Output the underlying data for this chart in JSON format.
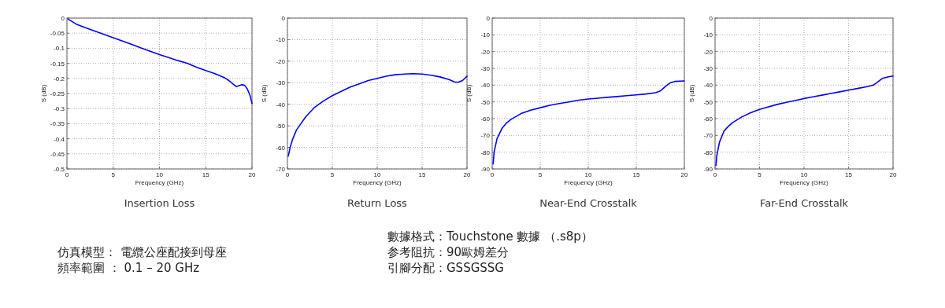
{
  "chart_data": [
    {
      "type": "line",
      "title": "Insertion Loss",
      "xlabel": "Frequency (GHz)",
      "ylabel": "S (dB)",
      "xlim": [
        0,
        20
      ],
      "xticks": [
        0,
        5,
        10,
        15,
        20
      ],
      "ylim": [
        -0.5,
        0
      ],
      "yticks": [
        0,
        -0.05,
        -0.1,
        -0.15,
        -0.2,
        -0.25,
        -0.3,
        -0.35,
        -0.4,
        -0.45,
        -0.5
      ],
      "grid": true,
      "series": [
        {
          "color": "#0000ff",
          "x": [
            0.1,
            1,
            2,
            3,
            4,
            5,
            6,
            7,
            8,
            9,
            10,
            11,
            12,
            13,
            14,
            15,
            16,
            17,
            17.5,
            18,
            18.3,
            18.6,
            18.9,
            19.2,
            19.5,
            19.8,
            20
          ],
          "values": [
            -0.003,
            -0.02,
            -0.032,
            -0.043,
            -0.054,
            -0.065,
            -0.076,
            -0.087,
            -0.099,
            -0.11,
            -0.121,
            -0.131,
            -0.141,
            -0.15,
            -0.163,
            -0.174,
            -0.184,
            -0.197,
            -0.207,
            -0.22,
            -0.227,
            -0.224,
            -0.221,
            -0.223,
            -0.235,
            -0.258,
            -0.283
          ]
        }
      ]
    },
    {
      "type": "line",
      "title": "Return Loss",
      "xlabel": "Frequency (GHz)",
      "ylabel": "S (dB)",
      "xlim": [
        0,
        20
      ],
      "xticks": [
        0,
        5,
        10,
        15,
        20
      ],
      "ylim": [
        -70,
        0
      ],
      "yticks": [
        0,
        -10,
        -20,
        -30,
        -40,
        -50,
        -60,
        -70
      ],
      "grid": true,
      "series": [
        {
          "color": "#0000ff",
          "x": [
            0.1,
            0.3,
            0.6,
            1,
            1.5,
            2,
            3,
            4,
            5,
            6,
            7,
            8,
            9,
            10,
            11,
            12,
            13,
            14,
            15,
            16,
            17,
            18,
            18.6,
            19,
            19.5,
            20
          ],
          "values": [
            -64,
            -60,
            -56,
            -52,
            -49,
            -46,
            -41.5,
            -38.5,
            -36,
            -34,
            -32,
            -30.5,
            -29,
            -28,
            -27,
            -26.3,
            -26,
            -25.8,
            -26,
            -26.5,
            -27.3,
            -28.5,
            -29.6,
            -29.8,
            -29,
            -27
          ]
        }
      ]
    },
    {
      "type": "line",
      "title": "Near-End Crosstalk",
      "xlabel": "Frequency (GHz)",
      "ylabel": "S (dB)",
      "xlim": [
        0,
        20
      ],
      "xticks": [
        0,
        5,
        10,
        15,
        20
      ],
      "ylim": [
        -90,
        0
      ],
      "yticks": [
        0,
        -10,
        -20,
        -30,
        -40,
        -50,
        -60,
        -70,
        -80,
        -90
      ],
      "grid": true,
      "series": [
        {
          "color": "#0000ff",
          "x": [
            0.1,
            0.2,
            0.5,
            1,
            1.5,
            2,
            3,
            4,
            5,
            6,
            7,
            8,
            9,
            10,
            11,
            12,
            13,
            14,
            15,
            16,
            17,
            17.5,
            18,
            18.5,
            19,
            20
          ],
          "values": [
            -87,
            -80,
            -72,
            -66,
            -62.5,
            -60.3,
            -57,
            -55,
            -53.5,
            -52,
            -51,
            -50,
            -49,
            -48.3,
            -47.8,
            -47.3,
            -46.8,
            -46.3,
            -45.8,
            -45.3,
            -44.5,
            -43.5,
            -41,
            -38.7,
            -37.8,
            -37.5
          ]
        }
      ]
    },
    {
      "type": "line",
      "title": "Far-End Crosstalk",
      "xlabel": "Frequency (GHz)",
      "ylabel": "S (dB)",
      "xlim": [
        0,
        20
      ],
      "xticks": [
        0,
        5,
        10,
        15,
        20
      ],
      "ylim": [
        -90,
        0
      ],
      "yticks": [
        0,
        -10,
        -20,
        -30,
        -40,
        -50,
        -60,
        -70,
        -80,
        -90
      ],
      "grid": true,
      "series": [
        {
          "color": "#0000ff",
          "x": [
            0.1,
            0.2,
            0.5,
            1,
            1.5,
            2,
            3,
            4,
            5,
            6,
            7,
            8,
            9,
            10,
            11,
            12,
            13,
            14,
            15,
            16,
            17,
            17.8,
            18.3,
            18.8,
            19.5,
            20
          ],
          "values": [
            -88,
            -82,
            -74,
            -67.5,
            -64.5,
            -62.3,
            -59,
            -56.5,
            -54.5,
            -53,
            -51.5,
            -50.3,
            -49.2,
            -48,
            -47,
            -46,
            -45,
            -44,
            -43,
            -42,
            -41,
            -40,
            -38,
            -36,
            -35,
            -34.6
          ]
        }
      ]
    },
    {
      "type": "other",
      "annotations": [
        "仿真模型： 電纜公座配接到母座",
        "頻率範圍 ： 0.1 – 20 GHz",
        "數據格式：Touchstone 數據 （.s8p）",
        "参考阻抗：90歐姆差分",
        "引腳分配：GSSGSSG"
      ]
    }
  ]
}
